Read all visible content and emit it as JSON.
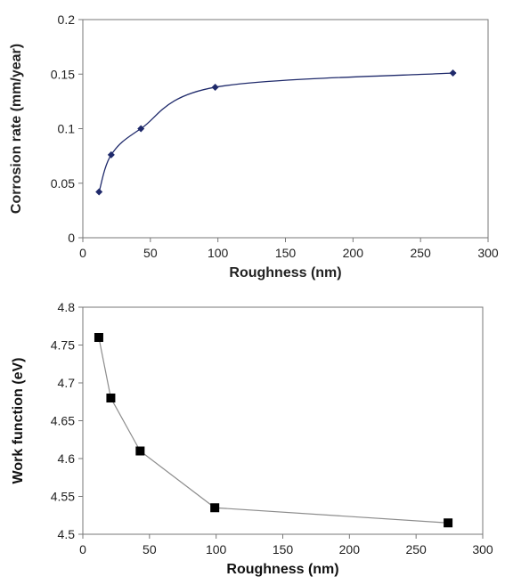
{
  "chart_data": [
    {
      "type": "line",
      "xlabel": "Roughness (nm)",
      "ylabel": "Corrosion rate (mm/year)",
      "xlim": [
        0,
        300
      ],
      "ylim": [
        0,
        0.2
      ],
      "xticks": [
        0,
        50,
        100,
        150,
        200,
        250,
        300
      ],
      "yticks": [
        0,
        0.05,
        0.1,
        0.15,
        0.2
      ],
      "xtick_labels": [
        "0",
        "50",
        "100",
        "150",
        "200",
        "250",
        "300"
      ],
      "ytick_labels": [
        "0",
        "0.05",
        "0.1",
        "0.15",
        "0.2"
      ],
      "grid": false,
      "smooth": true,
      "marker": "diamond",
      "color": "#1f2a6b",
      "series": [
        {
          "x": [
            12,
            21,
            43,
            98,
            274
          ],
          "y": [
            0.042,
            0.076,
            0.1,
            0.138,
            0.151
          ]
        }
      ]
    },
    {
      "type": "line",
      "xlabel": "Roughness (nm)",
      "ylabel": "Work function (eV)",
      "xlim": [
        0,
        300
      ],
      "ylim": [
        4.5,
        4.8
      ],
      "xticks": [
        0,
        50,
        100,
        150,
        200,
        250,
        300
      ],
      "yticks": [
        4.5,
        4.55,
        4.6,
        4.65,
        4.7,
        4.75,
        4.8
      ],
      "xtick_labels": [
        "0",
        "50",
        "100",
        "150",
        "200",
        "250",
        "300"
      ],
      "ytick_labels": [
        "4.5",
        "4.55",
        "4.6",
        "4.65",
        "4.7",
        "4.75",
        "4.8"
      ],
      "grid": false,
      "smooth": false,
      "marker": "square",
      "color": "#000000",
      "line_color": "#8c8c8c",
      "series": [
        {
          "x": [
            12,
            21,
            43,
            99,
            274
          ],
          "y": [
            4.76,
            4.68,
            4.61,
            4.535,
            4.515
          ]
        }
      ]
    }
  ]
}
